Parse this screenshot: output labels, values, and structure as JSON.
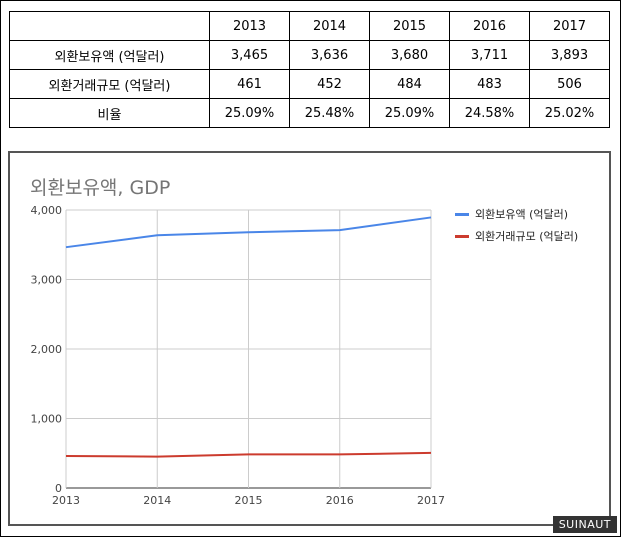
{
  "table": {
    "header": [
      "",
      "2013",
      "2014",
      "2015",
      "2016",
      "2017"
    ],
    "rows": [
      [
        "외환보유액 (억달러)",
        "3,465",
        "3,636",
        "3,680",
        "3,711",
        "3,893"
      ],
      [
        "외환거래규모 (억달러)",
        "461",
        "452",
        "484",
        "483",
        "506"
      ],
      [
        "비율",
        "25.09%",
        "25.48%",
        "25.09%",
        "24.58%",
        "25.02%"
      ]
    ]
  },
  "chart_data": {
    "type": "line",
    "title": "외환보유액, GDP",
    "x": [
      2013,
      2014,
      2015,
      2016,
      2017
    ],
    "xticks": [
      "2013",
      "2014",
      "2015",
      "2016",
      "2017"
    ],
    "yticks": [
      "0",
      "1,000",
      "2,000",
      "3,000",
      "4,000"
    ],
    "ylim": [
      0,
      4000
    ],
    "grid": true,
    "legend_position": "right",
    "series": [
      {
        "name": "외환보유액 (억달러)",
        "color": "#4a86e8",
        "values": [
          3465,
          3636,
          3680,
          3711,
          3893
        ]
      },
      {
        "name": "외환거래규모 (억달러)",
        "color": "#cc3b2e",
        "values": [
          461,
          452,
          484,
          483,
          506
        ]
      }
    ]
  },
  "watermark": "SUINAUT"
}
